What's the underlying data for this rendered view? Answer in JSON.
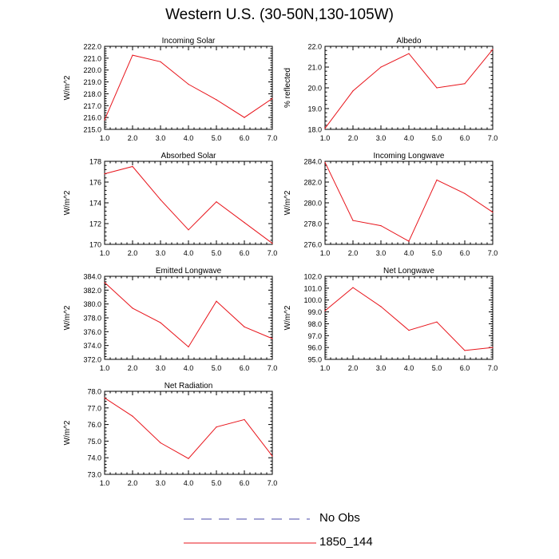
{
  "title": "Western U.S. (30-50N,130-105W)",
  "colors": {
    "model_line": "#e8141b",
    "obs_line": "#4a4aa8",
    "axis": "#000000"
  },
  "legend": [
    {
      "label": "No Obs",
      "style": "dashed",
      "color": "#4a4aa8"
    },
    {
      "label": "1850_144",
      "style": "solid",
      "color": "#e8141b"
    }
  ],
  "chart_data": [
    {
      "type": "line",
      "title": "Incoming Solar",
      "ylabel": "W/m^2",
      "x": [
        1,
        2,
        3,
        4,
        5,
        6,
        7
      ],
      "xlim": [
        1,
        7
      ],
      "xticks": [
        "1.0",
        "2.0",
        "3.0",
        "4.0",
        "5.0",
        "6.0",
        "7.0"
      ],
      "ylim": [
        215,
        222
      ],
      "yticks": [
        "215.0",
        "216.0",
        "217.0",
        "218.0",
        "219.0",
        "220.0",
        "221.0",
        "222.0"
      ],
      "series": [
        {
          "name": "1850_144",
          "values": [
            215.8,
            221.25,
            220.7,
            218.8,
            217.5,
            216.0,
            217.6
          ]
        }
      ]
    },
    {
      "type": "line",
      "title": "Albedo",
      "ylabel": "% reflected",
      "x": [
        1,
        2,
        3,
        4,
        5,
        6,
        7
      ],
      "xlim": [
        1,
        7
      ],
      "xticks": [
        "1.0",
        "2.0",
        "3.0",
        "4.0",
        "5.0",
        "6.0",
        "7.0"
      ],
      "ylim": [
        18,
        22
      ],
      "yticks": [
        "18.0",
        "19.0",
        "20.0",
        "21.0",
        "22.0"
      ],
      "series": [
        {
          "name": "1850_144",
          "values": [
            18.05,
            19.85,
            21.0,
            21.65,
            20.0,
            20.2,
            21.85
          ]
        }
      ]
    },
    {
      "type": "line",
      "title": "Absorbed Solar",
      "ylabel": "W/m^2",
      "x": [
        1,
        2,
        3,
        4,
        5,
        6,
        7
      ],
      "xlim": [
        1,
        7
      ],
      "xticks": [
        "1.0",
        "2.0",
        "3.0",
        "4.0",
        "5.0",
        "6.0",
        "7.0"
      ],
      "ylim": [
        170,
        178
      ],
      "yticks": [
        "170",
        "172",
        "174",
        "176",
        "178"
      ],
      "series": [
        {
          "name": "1850_144",
          "values": [
            176.8,
            177.5,
            174.3,
            171.4,
            174.1,
            172.1,
            170.1
          ]
        }
      ]
    },
    {
      "type": "line",
      "title": "Incoming Longwave",
      "ylabel": "W/m^2",
      "x": [
        1,
        2,
        3,
        4,
        5,
        6,
        7
      ],
      "xlim": [
        1,
        7
      ],
      "xticks": [
        "1.0",
        "2.0",
        "3.0",
        "4.0",
        "5.0",
        "6.0",
        "7.0"
      ],
      "ylim": [
        276,
        284
      ],
      "yticks": [
        "276.0",
        "278.0",
        "280.0",
        "282.0",
        "284.0"
      ],
      "series": [
        {
          "name": "1850_144",
          "values": [
            283.9,
            278.3,
            277.8,
            276.3,
            282.2,
            280.9,
            279.1
          ]
        }
      ]
    },
    {
      "type": "line",
      "title": "Emitted Longwave",
      "ylabel": "W/m^2",
      "x": [
        1,
        2,
        3,
        4,
        5,
        6,
        7
      ],
      "xlim": [
        1,
        7
      ],
      "xticks": [
        "1.0",
        "2.0",
        "3.0",
        "4.0",
        "5.0",
        "6.0",
        "7.0"
      ],
      "ylim": [
        372,
        384
      ],
      "yticks": [
        "372.0",
        "374.0",
        "376.0",
        "378.0",
        "380.0",
        "382.0",
        "384.0"
      ],
      "series": [
        {
          "name": "1850_144",
          "values": [
            383.1,
            379.4,
            377.3,
            373.8,
            380.4,
            376.7,
            375.0
          ]
        }
      ]
    },
    {
      "type": "line",
      "title": "Net Longwave",
      "ylabel": "W/m^2",
      "x": [
        1,
        2,
        3,
        4,
        5,
        6,
        7
      ],
      "xlim": [
        1,
        7
      ],
      "xticks": [
        "1.0",
        "2.0",
        "3.0",
        "4.0",
        "5.0",
        "6.0",
        "7.0"
      ],
      "ylim": [
        95,
        102
      ],
      "yticks": [
        "95.0",
        "96.0",
        "97.0",
        "98.0",
        "99.0",
        "100.0",
        "101.0",
        "102.0"
      ],
      "series": [
        {
          "name": "1850_144",
          "values": [
            99.1,
            101.05,
            99.45,
            97.45,
            98.15,
            95.75,
            96.0
          ]
        }
      ]
    },
    {
      "type": "line",
      "title": "Net Radiation",
      "ylabel": "W/m^2",
      "x": [
        1,
        2,
        3,
        4,
        5,
        6,
        7
      ],
      "xlim": [
        1,
        7
      ],
      "xticks": [
        "1.0",
        "2.0",
        "3.0",
        "4.0",
        "5.0",
        "6.0",
        "7.0"
      ],
      "ylim": [
        73,
        78
      ],
      "yticks": [
        "73.0",
        "74.0",
        "75.0",
        "76.0",
        "77.0",
        "78.0"
      ],
      "series": [
        {
          "name": "1850_144",
          "values": [
            77.6,
            76.5,
            74.9,
            73.95,
            75.85,
            76.3,
            74.1
          ]
        }
      ]
    }
  ]
}
